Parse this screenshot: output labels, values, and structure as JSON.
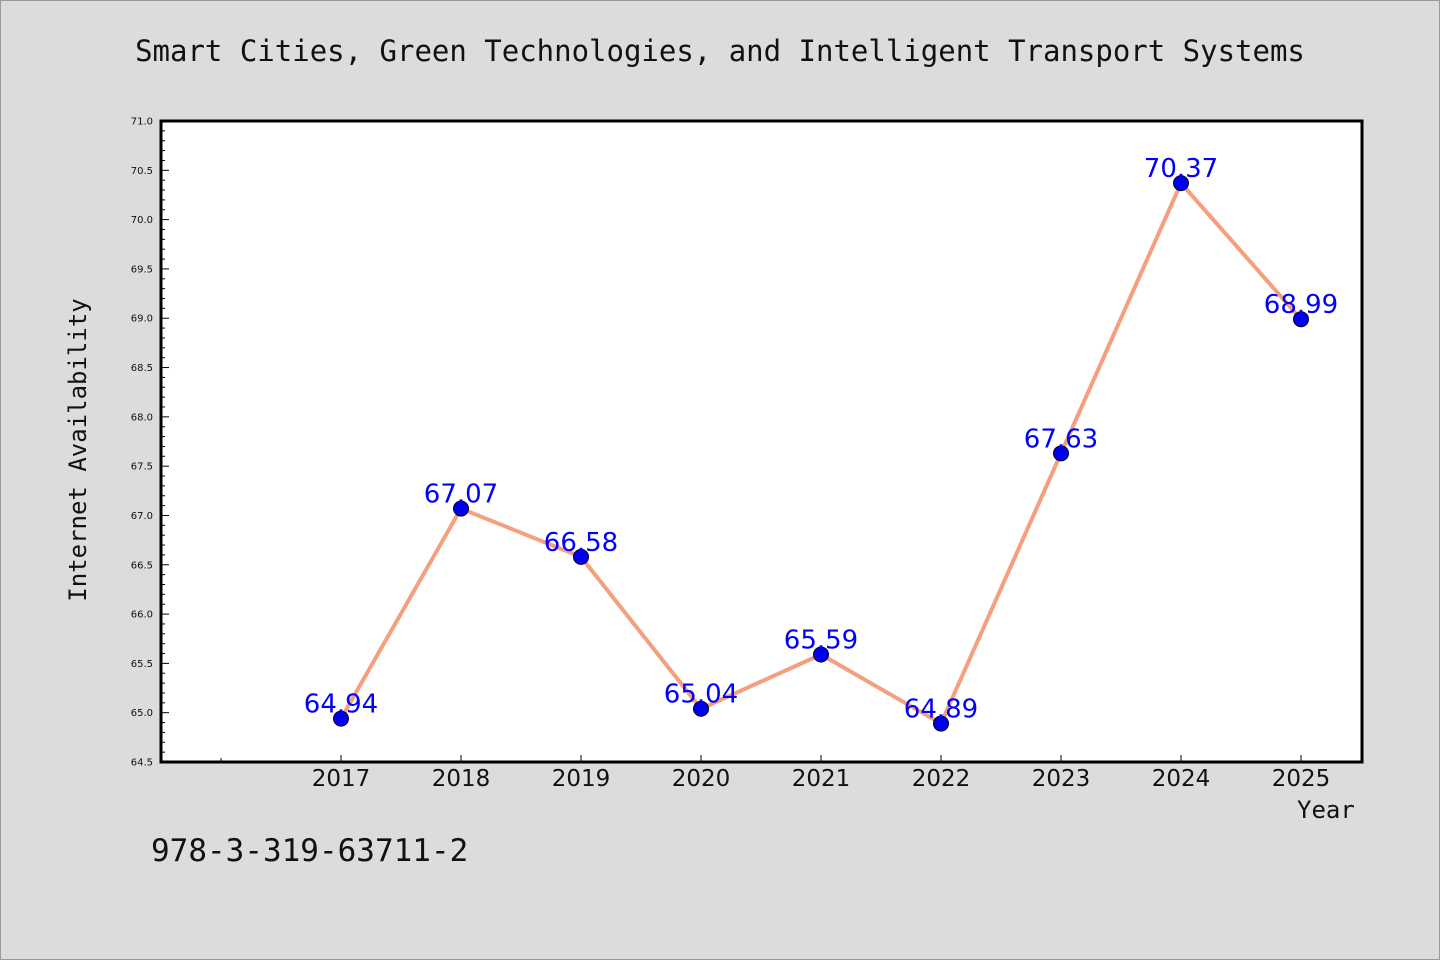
{
  "footer": {
    "isbn": "978-3-319-63711-2"
  },
  "colors": {
    "background": "#dcdcdc",
    "plot_background": "#ffffff",
    "line": "#f4a07e",
    "marker": "#0000ee",
    "data_label": "#0000ff"
  },
  "chart_data": {
    "type": "line",
    "title": "Smart Cities, Green Technologies, and Intelligent Transport Systems",
    "xlabel": "Year",
    "ylabel": "Internet Availability",
    "categories": [
      "2017",
      "2018",
      "2019",
      "2020",
      "2021",
      "2022",
      "2023",
      "2024",
      "2025"
    ],
    "series": [
      {
        "values": [
          64.94,
          67.07,
          66.58,
          65.04,
          65.59,
          64.89,
          67.63,
          70.37,
          68.99
        ],
        "labels": [
          "64.94",
          "67.07",
          "66.58",
          "65.04",
          "65.59",
          "64.89",
          "67.63",
          "70.37",
          "68.99"
        ]
      }
    ],
    "ylim": [
      64.5,
      71.0
    ],
    "yticks": [
      "64.5",
      "65.0",
      "65.5",
      "66.0",
      "66.5",
      "67.0",
      "67.5",
      "68.0",
      "68.5",
      "69.0",
      "69.5",
      "70.0",
      "70.5",
      "71.0"
    ],
    "grid": false,
    "legend": "none"
  }
}
